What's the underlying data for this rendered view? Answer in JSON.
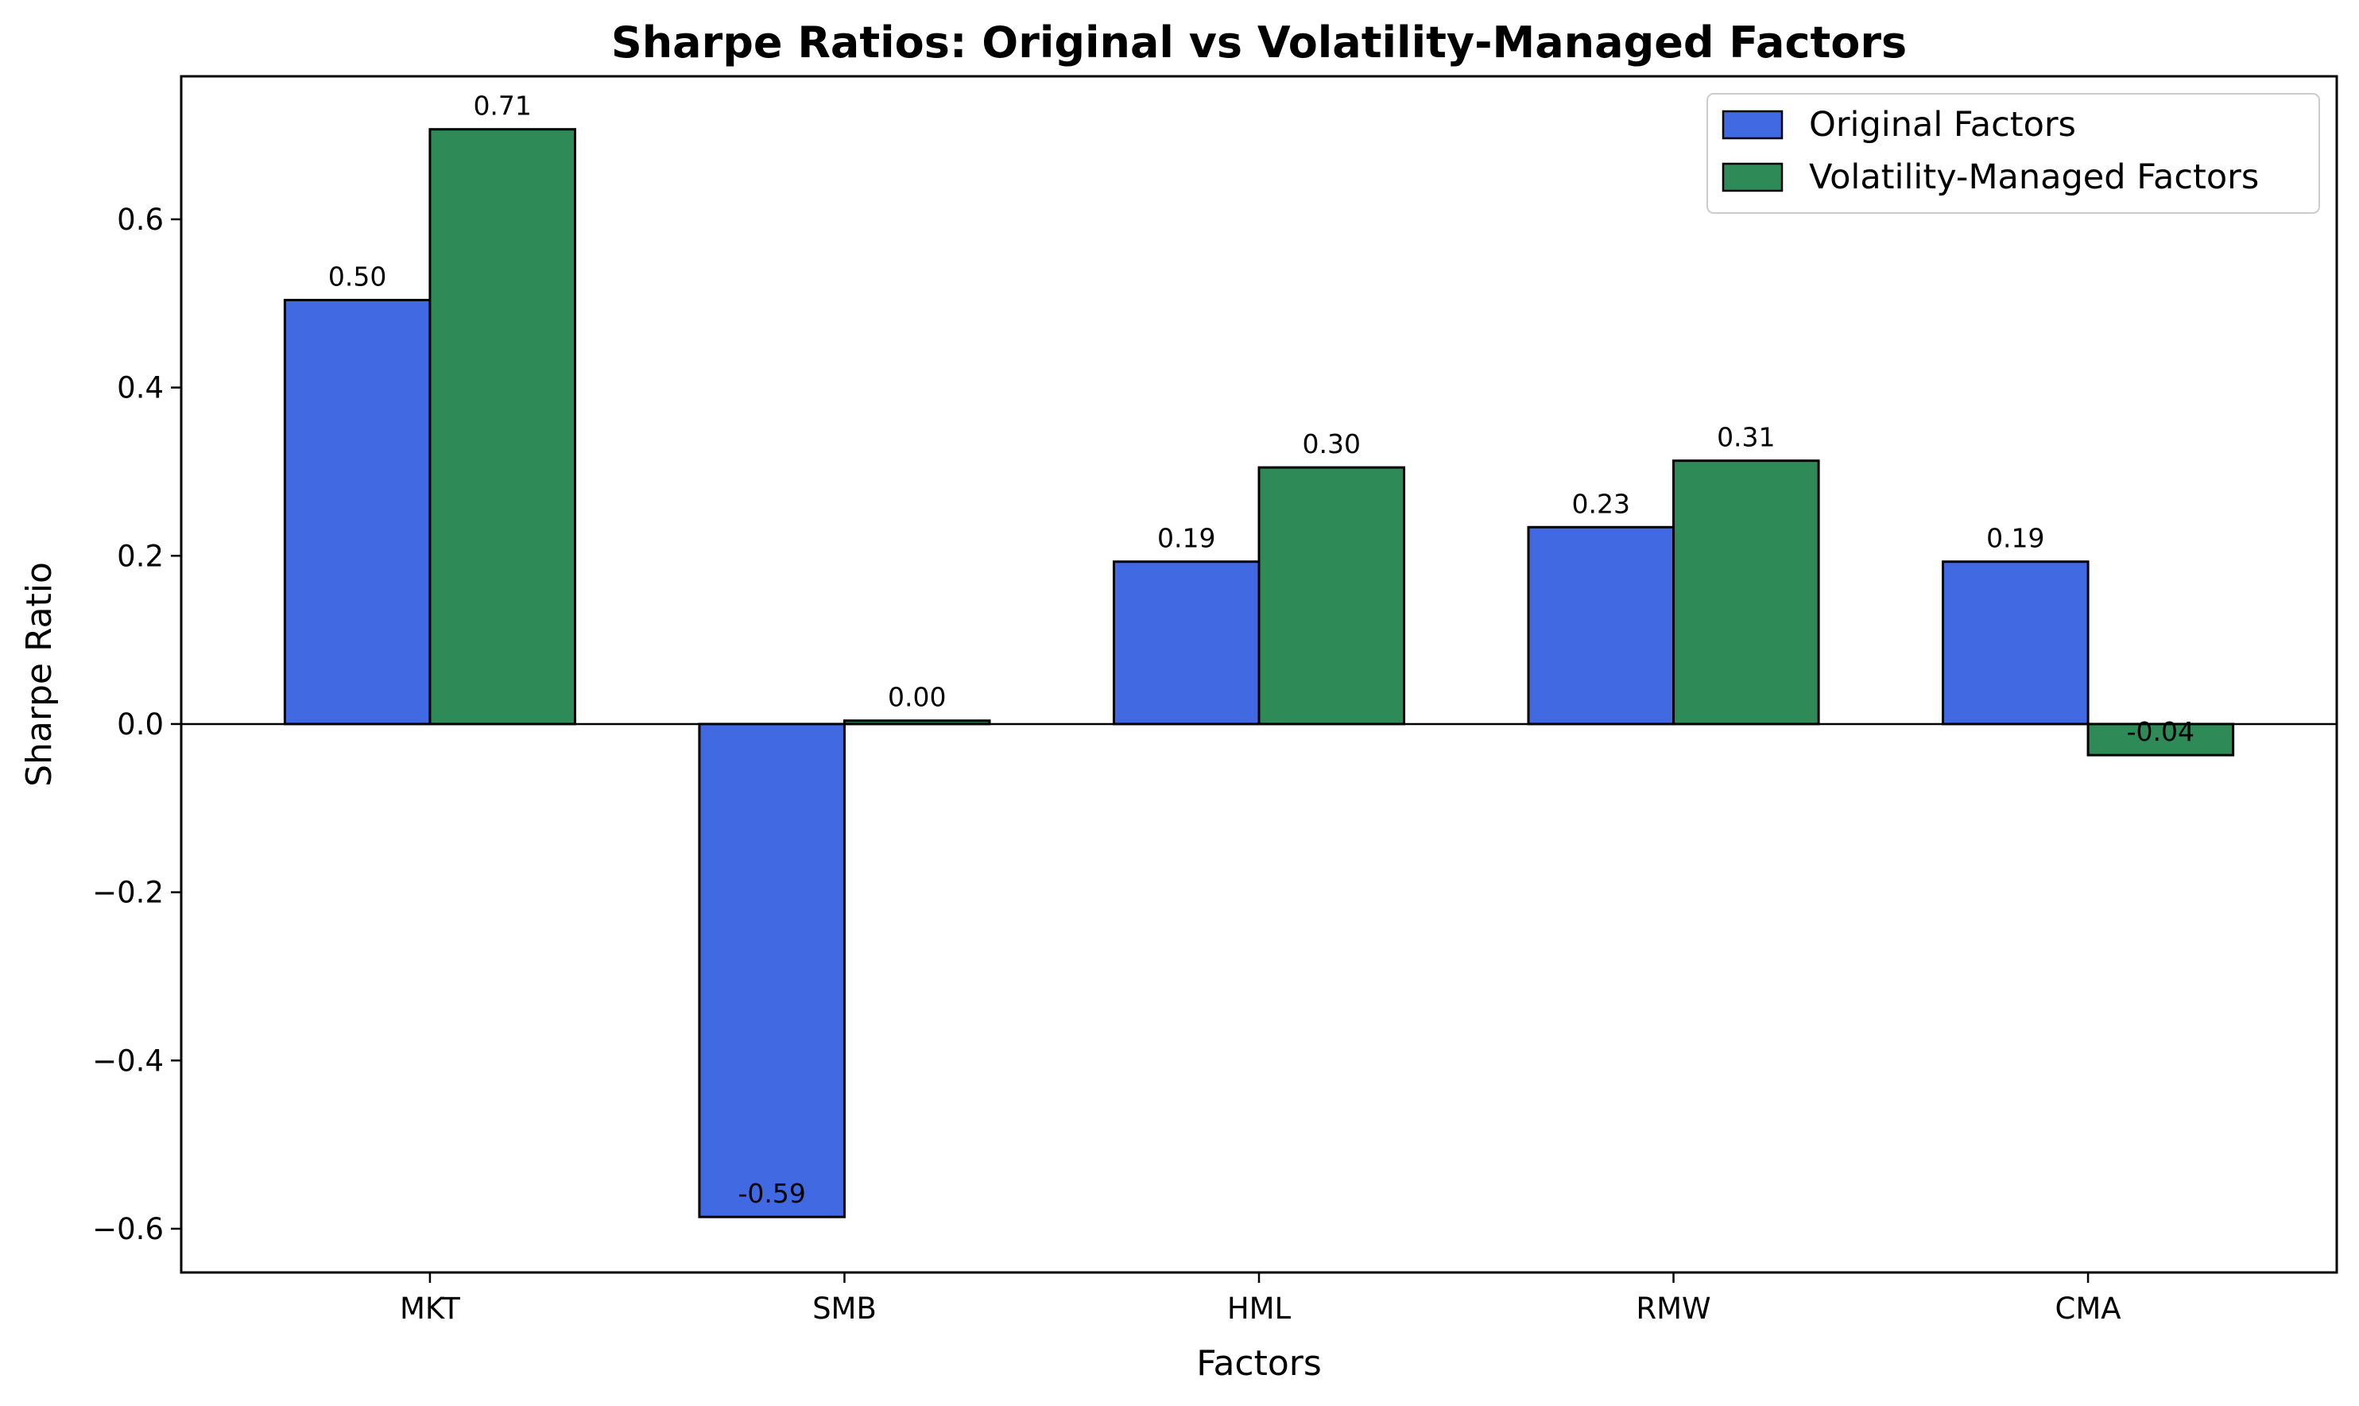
{
  "chart_data": {
    "type": "bar",
    "title": "Sharpe Ratios: Original vs Volatility-Managed Factors",
    "xlabel": "Factors",
    "ylabel": "Sharpe Ratio",
    "categories": [
      "MKT",
      "SMB",
      "HML",
      "RMW",
      "CMA"
    ],
    "series": [
      {
        "name": "Original Factors",
        "color": "#4169e1",
        "values": [
          0.504,
          -0.586,
          0.193,
          0.234,
          0.193
        ],
        "labels": [
          "0.50",
          "-0.59",
          "0.19",
          "0.23",
          "0.19"
        ]
      },
      {
        "name": "Volatility-Managed Factors",
        "color": "#2e8b57",
        "values": [
          0.707,
          0.004,
          0.305,
          0.313,
          -0.037
        ],
        "labels": [
          "0.71",
          "0.00",
          "0.30",
          "0.31",
          "-0.04"
        ]
      }
    ],
    "ylim": [
      -0.652,
      0.77
    ],
    "yticks": [
      -0.6,
      -0.4,
      -0.2,
      0.0,
      0.2,
      0.4,
      0.6
    ],
    "ytick_labels": [
      "−0.6",
      "−0.4",
      "−0.2",
      "0.0",
      "0.2",
      "0.4",
      "0.6"
    ],
    "zero_line": true,
    "grid": false,
    "legend_position": "top-right"
  }
}
